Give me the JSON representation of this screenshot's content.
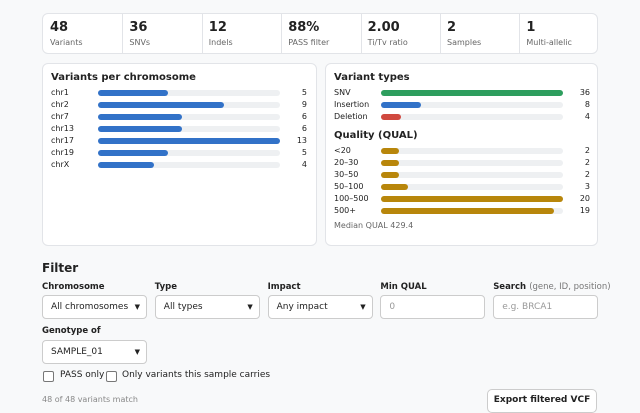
{
  "stats": [
    {
      "value": "48",
      "label": "Variants"
    },
    {
      "value": "36",
      "label": "SNVs"
    },
    {
      "value": "12",
      "label": "Indels"
    },
    {
      "value": "88%",
      "label": "PASS filter"
    },
    {
      "value": "2.00",
      "label": "Ti/Tv ratio"
    },
    {
      "value": "2",
      "label": "Samples"
    },
    {
      "value": "1",
      "label": "Multi-allelic"
    }
  ],
  "chromosomes": {
    "title": "Variants per chromosome",
    "color": "#3272c8",
    "rows": [
      {
        "label": "chr1",
        "value": 5
      },
      {
        "label": "chr2",
        "value": 9
      },
      {
        "label": "chr7",
        "value": 6
      },
      {
        "label": "chr13",
        "value": 6
      },
      {
        "label": "chr17",
        "value": 13
      },
      {
        "label": "chr19",
        "value": 5
      },
      {
        "label": "chrX",
        "value": 4
      }
    ]
  },
  "variant_types": {
    "title": "Variant types",
    "rows": [
      {
        "label": "SNV",
        "value": 36,
        "color": "#2e9e5e"
      },
      {
        "label": "Insertion",
        "value": 8,
        "color": "#3272c8"
      },
      {
        "label": "Deletion",
        "value": 4,
        "color": "#d0493f"
      }
    ]
  },
  "quality": {
    "title": "Quality (QUAL)",
    "color": "#b8860b",
    "rows": [
      {
        "label": "<20",
        "value": 2
      },
      {
        "label": "20–30",
        "value": 2
      },
      {
        "label": "30–50",
        "value": 2
      },
      {
        "label": "50–100",
        "value": 3
      },
      {
        "label": "100–500",
        "value": 20
      },
      {
        "label": "500+",
        "value": 19
      }
    ],
    "note": "Median QUAL 429.4"
  },
  "filter": {
    "title": "Filter",
    "fields": [
      {
        "label": "Chromosome",
        "value": "All chromosomes"
      },
      {
        "label": "Type",
        "value": "All types"
      },
      {
        "label": "Impact",
        "value": "Any impact"
      },
      {
        "label": "Min QUAL",
        "placeholder": "0"
      },
      {
        "label": "Search",
        "hint": "(gene, ID, position)",
        "placeholder": "e.g. BRCA1"
      }
    ],
    "genotype": {
      "label": "Genotype of",
      "value": "SAMPLE_01"
    },
    "checkboxes": [
      "PASS only",
      "Only variants this sample carries"
    ],
    "match_text": "48 of 48 variants match",
    "export_button": "Export filtered VCF"
  }
}
